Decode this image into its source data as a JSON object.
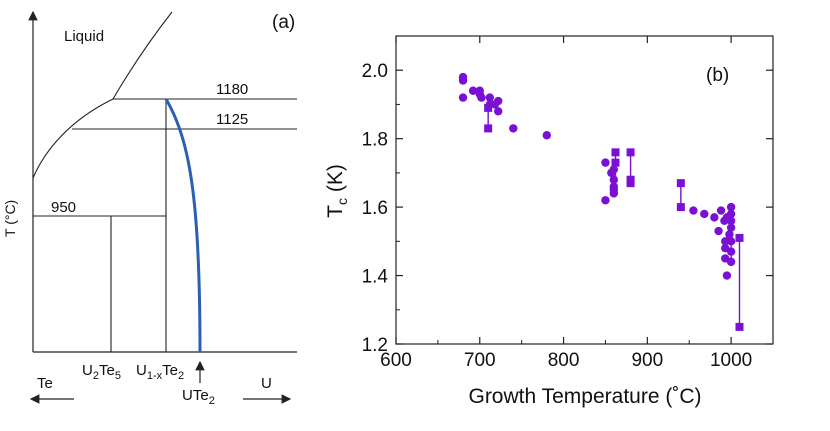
{
  "chart_data": [
    {
      "type": "diagram",
      "panel_label": "(a)",
      "ylabel": "T (°C)",
      "region_labels": {
        "liquid": "Liquid"
      },
      "isotherms": [
        {
          "label": "1180"
        },
        {
          "label": "1125"
        },
        {
          "label": "950"
        }
      ],
      "compound_labels": [
        {
          "main": "U",
          "sub": "2",
          "main2": "Te",
          "sub2": "5"
        },
        {
          "main": "U",
          "sub": "1-x",
          "main2": "Te",
          "sub2": "2"
        }
      ],
      "arrow_label": {
        "main": "UTe",
        "sub": "2"
      },
      "axis_ends": {
        "left": "Te",
        "right": "U"
      },
      "colors": {
        "ute2_curve": "#2b5fb4",
        "lines": "#222222"
      }
    },
    {
      "type": "scatter",
      "panel_label": "(b)",
      "xlabel": "Growth Temperature (˚C)",
      "ylabel_main": "T",
      "ylabel_sub": "c",
      "ylabel_unit": " (K)",
      "xlim": [
        600,
        1050
      ],
      "ylim": [
        1.2,
        2.1
      ],
      "xticks": [
        600,
        700,
        800,
        900,
        1000
      ],
      "yticks": [
        1.2,
        1.4,
        1.6,
        1.8,
        2.0
      ],
      "ytick_labels": [
        "1.2",
        "1.4",
        "1.6",
        "1.8",
        "2.0"
      ],
      "color": "#7a10d4",
      "circles": [
        [
          680,
          1.98
        ],
        [
          680,
          1.97
        ],
        [
          680,
          1.92
        ],
        [
          692,
          1.94
        ],
        [
          700,
          1.93
        ],
        [
          700,
          1.94
        ],
        [
          702,
          1.92
        ],
        [
          712,
          1.92
        ],
        [
          712,
          1.9
        ],
        [
          718,
          1.9
        ],
        [
          722,
          1.91
        ],
        [
          722,
          1.88
        ],
        [
          740,
          1.83
        ],
        [
          780,
          1.81
        ],
        [
          850,
          1.73
        ],
        [
          850,
          1.62
        ],
        [
          857,
          1.7
        ],
        [
          860,
          1.68
        ],
        [
          860,
          1.66
        ],
        [
          860,
          1.65
        ],
        [
          860,
          1.64
        ],
        [
          860,
          1.71
        ],
        [
          955,
          1.59
        ],
        [
          968,
          1.58
        ],
        [
          980,
          1.57
        ],
        [
          985,
          1.53
        ],
        [
          988,
          1.59
        ],
        [
          992,
          1.56
        ],
        [
          993,
          1.5
        ],
        [
          993,
          1.48
        ],
        [
          993,
          1.45
        ],
        [
          995,
          1.4
        ],
        [
          995,
          1.57
        ],
        [
          998,
          1.52
        ],
        [
          1000,
          1.58
        ],
        [
          1000,
          1.6
        ],
        [
          1000,
          1.56
        ],
        [
          1000,
          1.54
        ],
        [
          1000,
          1.5
        ],
        [
          1000,
          1.47
        ],
        [
          1000,
          1.44
        ]
      ],
      "squares": [
        [
          710,
          1.89
        ],
        [
          710,
          1.83
        ],
        [
          862,
          1.76
        ],
        [
          862,
          1.73
        ],
        [
          880,
          1.76
        ],
        [
          880,
          1.68
        ],
        [
          880,
          1.67
        ],
        [
          940,
          1.67
        ],
        [
          940,
          1.6
        ],
        [
          1010,
          1.51
        ],
        [
          1010,
          1.25
        ]
      ],
      "bars": [
        [
          710,
          1.83,
          1.89
        ],
        [
          862,
          1.64,
          1.76
        ],
        [
          880,
          1.67,
          1.76
        ],
        [
          940,
          1.6,
          1.67
        ],
        [
          1000,
          1.44,
          1.6
        ],
        [
          1010,
          1.25,
          1.51
        ]
      ]
    }
  ]
}
